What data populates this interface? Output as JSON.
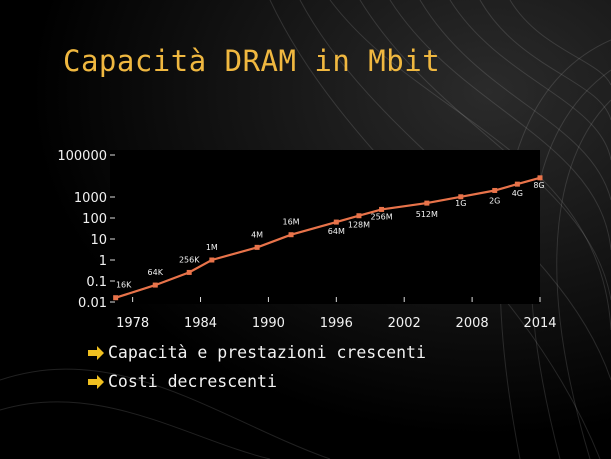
{
  "slide": {
    "title": "Capacità DRAM in Mbit",
    "bullets": [
      {
        "text": "Capacità e prestazioni crescenti",
        "icon": "arrow-right-icon"
      },
      {
        "text": "Costi decrescenti",
        "icon": "arrow-right-icon"
      }
    ]
  },
  "colors": {
    "background": "#000000",
    "title": "#f0b840",
    "line": "#e8734a",
    "marker": "#e8734a",
    "bullet_arrow": "#f0c020",
    "text": "#f2f2f2"
  },
  "chart_data": {
    "type": "line",
    "title": "",
    "xlabel": "",
    "ylabel": "",
    "yscale": "log",
    "xlim": [
      1976,
      2014
    ],
    "ylim": [
      0.01,
      100000
    ],
    "x_ticks": [
      1978,
      1984,
      1990,
      1996,
      2002,
      2008,
      2014
    ],
    "y_ticks": [
      {
        "value": 0.01,
        "label": "0.01"
      },
      {
        "value": 0.1,
        "label": "0.1"
      },
      {
        "value": 1,
        "label": "1"
      },
      {
        "value": 10,
        "label": "10"
      },
      {
        "value": 100,
        "label": "100"
      },
      {
        "value": 1000,
        "label": "1000"
      },
      {
        "value": 100000,
        "label": "100000"
      }
    ],
    "grid": false,
    "series": [
      {
        "points": [
          {
            "x": 1976.5,
            "y": 0.016,
            "label": "16K"
          },
          {
            "x": 1980,
            "y": 0.064,
            "label": "64K"
          },
          {
            "x": 1983,
            "y": 0.256,
            "label": "256K"
          },
          {
            "x": 1985,
            "y": 1,
            "label": "1M"
          },
          {
            "x": 1989,
            "y": 4,
            "label": "4M"
          },
          {
            "x": 1992,
            "y": 16,
            "label": "16M"
          },
          {
            "x": 1996,
            "y": 64,
            "label": "64M"
          },
          {
            "x": 1998,
            "y": 128,
            "label": "128M"
          },
          {
            "x": 2000,
            "y": 256,
            "label": "256M"
          },
          {
            "x": 2004,
            "y": 512,
            "label": "512M"
          },
          {
            "x": 2007,
            "y": 1024,
            "label": "1G"
          },
          {
            "x": 2010,
            "y": 2048,
            "label": "2G"
          },
          {
            "x": 2012,
            "y": 4096,
            "label": "4G"
          },
          {
            "x": 2014,
            "y": 8192,
            "label": "8G"
          }
        ]
      }
    ]
  }
}
